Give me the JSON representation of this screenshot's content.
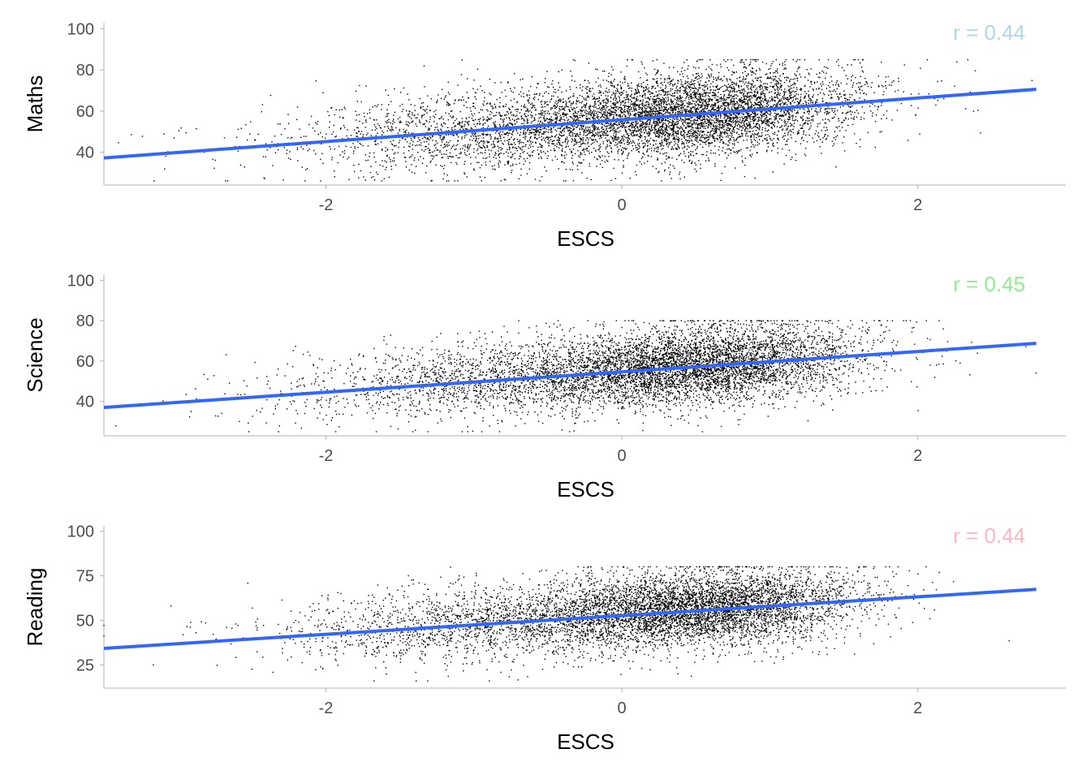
{
  "colors": {
    "points": "#000000",
    "fit_line": "#3366FF",
    "axis": "#b3b3b3",
    "tick_text": "#4d4d4d"
  },
  "chart_data": [
    {
      "type": "scatter",
      "xlabel": "ESCS",
      "ylabel": "Maths",
      "annotation": "r = 0.44",
      "annotation_color": "#ADD8E6",
      "annotation_position": "top-right",
      "xlim": [
        -3.5,
        3.0
      ],
      "ylim": [
        24,
        103
      ],
      "xticks": [
        "-2",
        "0",
        "2"
      ],
      "xtick_values": [
        -2,
        0,
        2
      ],
      "yticks": [
        "40",
        "60",
        "80",
        "100"
      ],
      "ytick_values": [
        40,
        60,
        80,
        100
      ],
      "grid": false,
      "fit_line": {
        "x1": -3.5,
        "y1": 37.2,
        "x2": 2.8,
        "y2": 70.6
      },
      "points": {
        "n": 7000,
        "x_center": 0.55,
        "x_spread": 0.85,
        "x_range": [
          -3.5,
          2.8
        ],
        "y_at_zero": 56.0,
        "slope": 5.3,
        "resid_sd": 10.2,
        "y_range": [
          26,
          85
        ],
        "seed": 11
      }
    },
    {
      "type": "scatter",
      "xlabel": "ESCS",
      "ylabel": "Science",
      "annotation": "r = 0.45",
      "annotation_color": "#90EE90",
      "annotation_position": "top-right",
      "xlim": [
        -3.5,
        3.0
      ],
      "ylim": [
        23,
        103
      ],
      "xticks": [
        "-2",
        "0",
        "2"
      ],
      "xtick_values": [
        -2,
        0,
        2
      ],
      "yticks": [
        "40",
        "60",
        "80",
        "100"
      ],
      "ytick_values": [
        40,
        60,
        80,
        100
      ],
      "grid": false,
      "fit_line": {
        "x1": -3.5,
        "y1": 37.0,
        "x2": 2.8,
        "y2": 68.8
      },
      "points": {
        "n": 7000,
        "x_center": 0.55,
        "x_spread": 0.85,
        "x_range": [
          -3.5,
          2.8
        ],
        "y_at_zero": 55.0,
        "slope": 5.0,
        "resid_sd": 9.6,
        "y_range": [
          25,
          80
        ],
        "seed": 23
      }
    },
    {
      "type": "scatter",
      "xlabel": "ESCS",
      "ylabel": "Reading",
      "annotation": "r = 0.44",
      "annotation_color": "#FFB6C1",
      "annotation_position": "top-right",
      "xlim": [
        -3.5,
        3.0
      ],
      "ylim": [
        12,
        103
      ],
      "xticks": [
        "-2",
        "0",
        "2"
      ],
      "xtick_values": [
        -2,
        0,
        2
      ],
      "yticks": [
        "25",
        "50",
        "75",
        "100"
      ],
      "ytick_values": [
        25,
        50,
        75,
        100
      ],
      "grid": false,
      "fit_line": {
        "x1": -3.5,
        "y1": 34.3,
        "x2": 2.8,
        "y2": 67.4
      },
      "points": {
        "n": 7000,
        "x_center": 0.55,
        "x_spread": 0.85,
        "x_range": [
          -3.5,
          2.8
        ],
        "y_at_zero": 53.5,
        "slope": 5.25,
        "resid_sd": 10.5,
        "y_range": [
          16,
          80
        ],
        "seed": 37
      }
    }
  ]
}
